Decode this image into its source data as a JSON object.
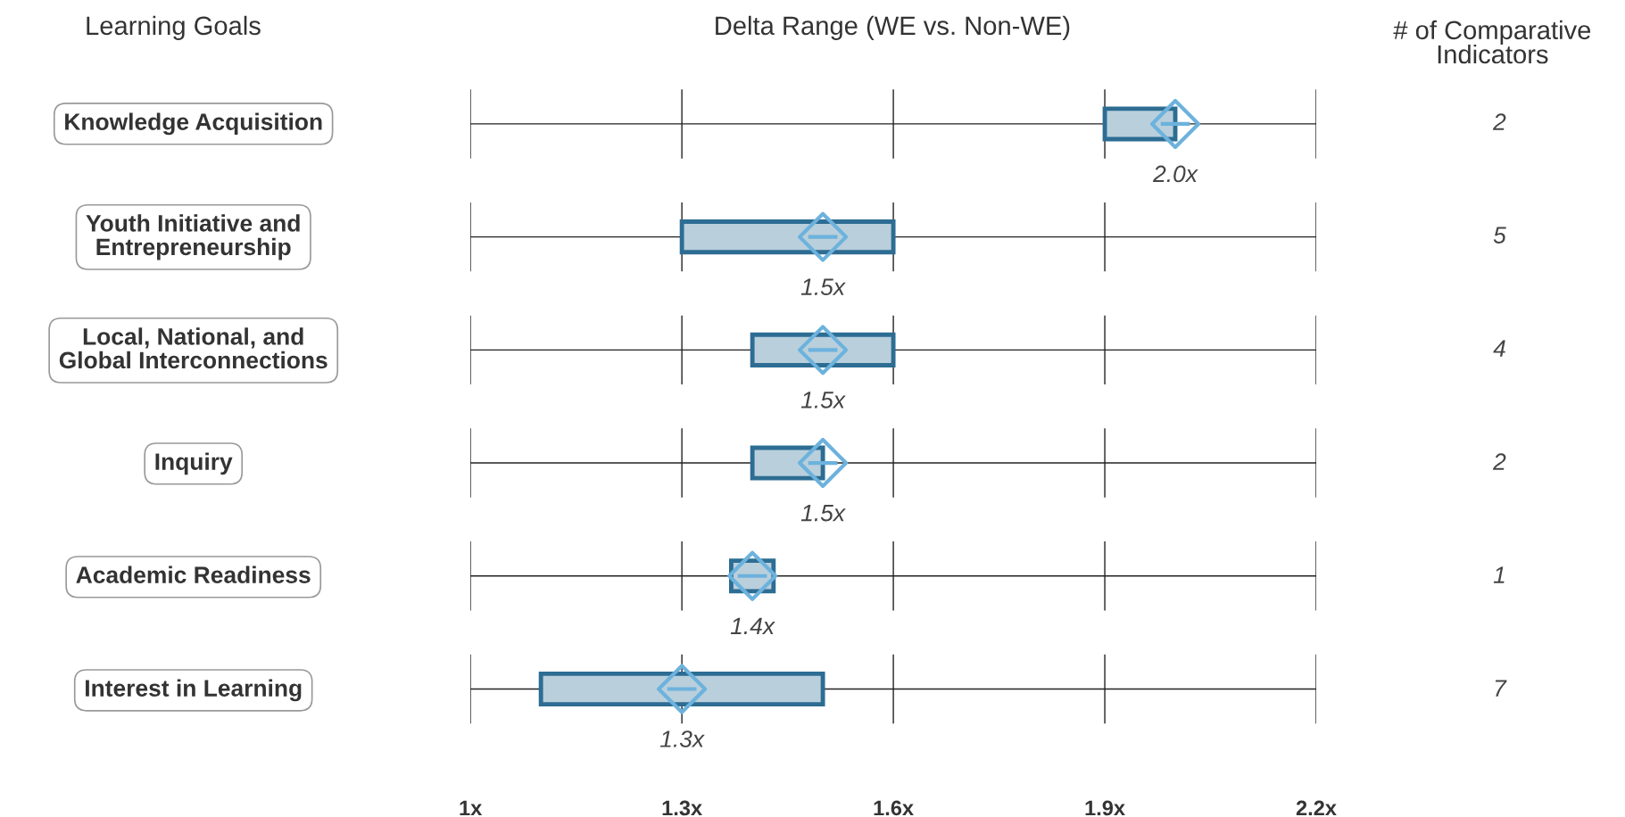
{
  "chart_data": {
    "type": "bar",
    "orientation": "horizontal",
    "title": "Delta Range (WE vs. Non-WE)",
    "ylabel": "Learning Goals",
    "y2label": "# of Comparative\nIndicators",
    "categories": [
      "Knowledge Acquisition",
      "Youth Initiative and\nEntrepreneurship",
      "Local, National, and\nGlobal Interconnections",
      "Inquiry",
      "Academic Readiness",
      "Interest in Learning"
    ],
    "series": [
      {
        "type": "bar",
        "color": "#b9cfdc",
        "base": [
          1.9,
          1.3,
          1.4,
          1.4,
          1.37,
          1.1
        ],
        "values": [
          0.1,
          0.3,
          0.2,
          0.1,
          0.06,
          0.4
        ]
      },
      {
        "type": "scatter",
        "color": "#6cb2dd",
        "marker": "diamond",
        "values": [
          2.0,
          1.5,
          1.5,
          1.5,
          1.4,
          1.3
        ],
        "value_labels": [
          "2.0x",
          "1.5x",
          "1.5x",
          "1.5x",
          "1.4x",
          "1.3x"
        ]
      }
    ],
    "annotations": [
      "2",
      "5",
      "4",
      "2",
      "1",
      "7"
    ],
    "xlim": [
      1,
      2.2
    ],
    "xticks": [
      {
        "value": 1,
        "label": "1x"
      },
      {
        "value": 1.3,
        "label": "1.3x"
      },
      {
        "value": 1.6,
        "label": "1.6x"
      },
      {
        "value": 1.9,
        "label": "1.9x"
      },
      {
        "value": 2.2,
        "label": "2.2x"
      }
    ],
    "grid": true
  }
}
